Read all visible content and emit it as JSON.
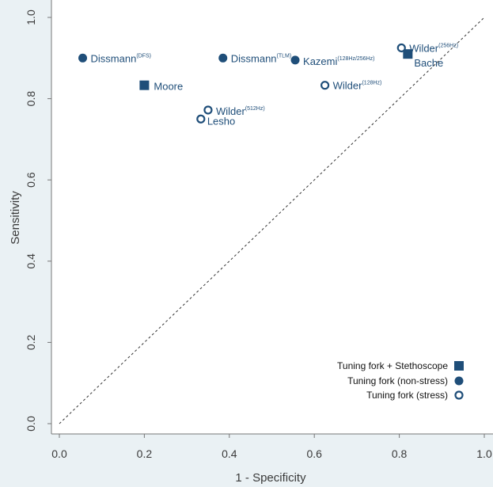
{
  "chart_data": {
    "type": "scatter",
    "xlabel": "1 - Specificity",
    "ylabel": "Sensitivity",
    "xlim": [
      0,
      1
    ],
    "ylim": [
      0,
      1
    ],
    "x_ticks": [
      "0.0",
      "0.2",
      "0.4",
      "0.6",
      "0.8",
      "1.0"
    ],
    "y_ticks": [
      "0.0",
      "0.2",
      "0.4",
      "0.6",
      "0.8",
      "1.0"
    ],
    "reference_line": "diagonal, dashed",
    "grid": false,
    "legend_position": "bottom-right",
    "series": [
      {
        "name": "Tuning fork + Stethoscope",
        "marker": "filled-square",
        "points": [
          {
            "label": "Moore",
            "sup": "",
            "x": 0.2,
            "y": 0.833
          },
          {
            "label": "Bache",
            "sup": "",
            "x": 0.82,
            "y": 0.91
          }
        ]
      },
      {
        "name": "Tuning fork (non-stress)",
        "marker": "filled-circle",
        "points": [
          {
            "label": "Dissmann",
            "sup": "(DFS)",
            "x": 0.055,
            "y": 0.9
          },
          {
            "label": "Dissmann",
            "sup": "(TLM)",
            "x": 0.385,
            "y": 0.9
          },
          {
            "label": "Kazemi",
            "sup": "(128Hz/256Hz)",
            "x": 0.555,
            "y": 0.895
          }
        ]
      },
      {
        "name": "Tuning fork (stress)",
        "marker": "open-circle",
        "points": [
          {
            "label": "Wilder",
            "sup": "(256Hz)",
            "x": 0.805,
            "y": 0.925
          },
          {
            "label": "Wilder",
            "sup": "(128Hz)",
            "x": 0.625,
            "y": 0.833
          },
          {
            "label": "Wilder",
            "sup": "(512Hz)",
            "x": 0.35,
            "y": 0.772
          },
          {
            "label": "Lesho",
            "sup": "",
            "x": 0.333,
            "y": 0.75
          }
        ]
      }
    ]
  },
  "colors": {
    "marker": "#1f4e79",
    "background": "#eaf1f4",
    "plot_background": "#ffffff"
  }
}
